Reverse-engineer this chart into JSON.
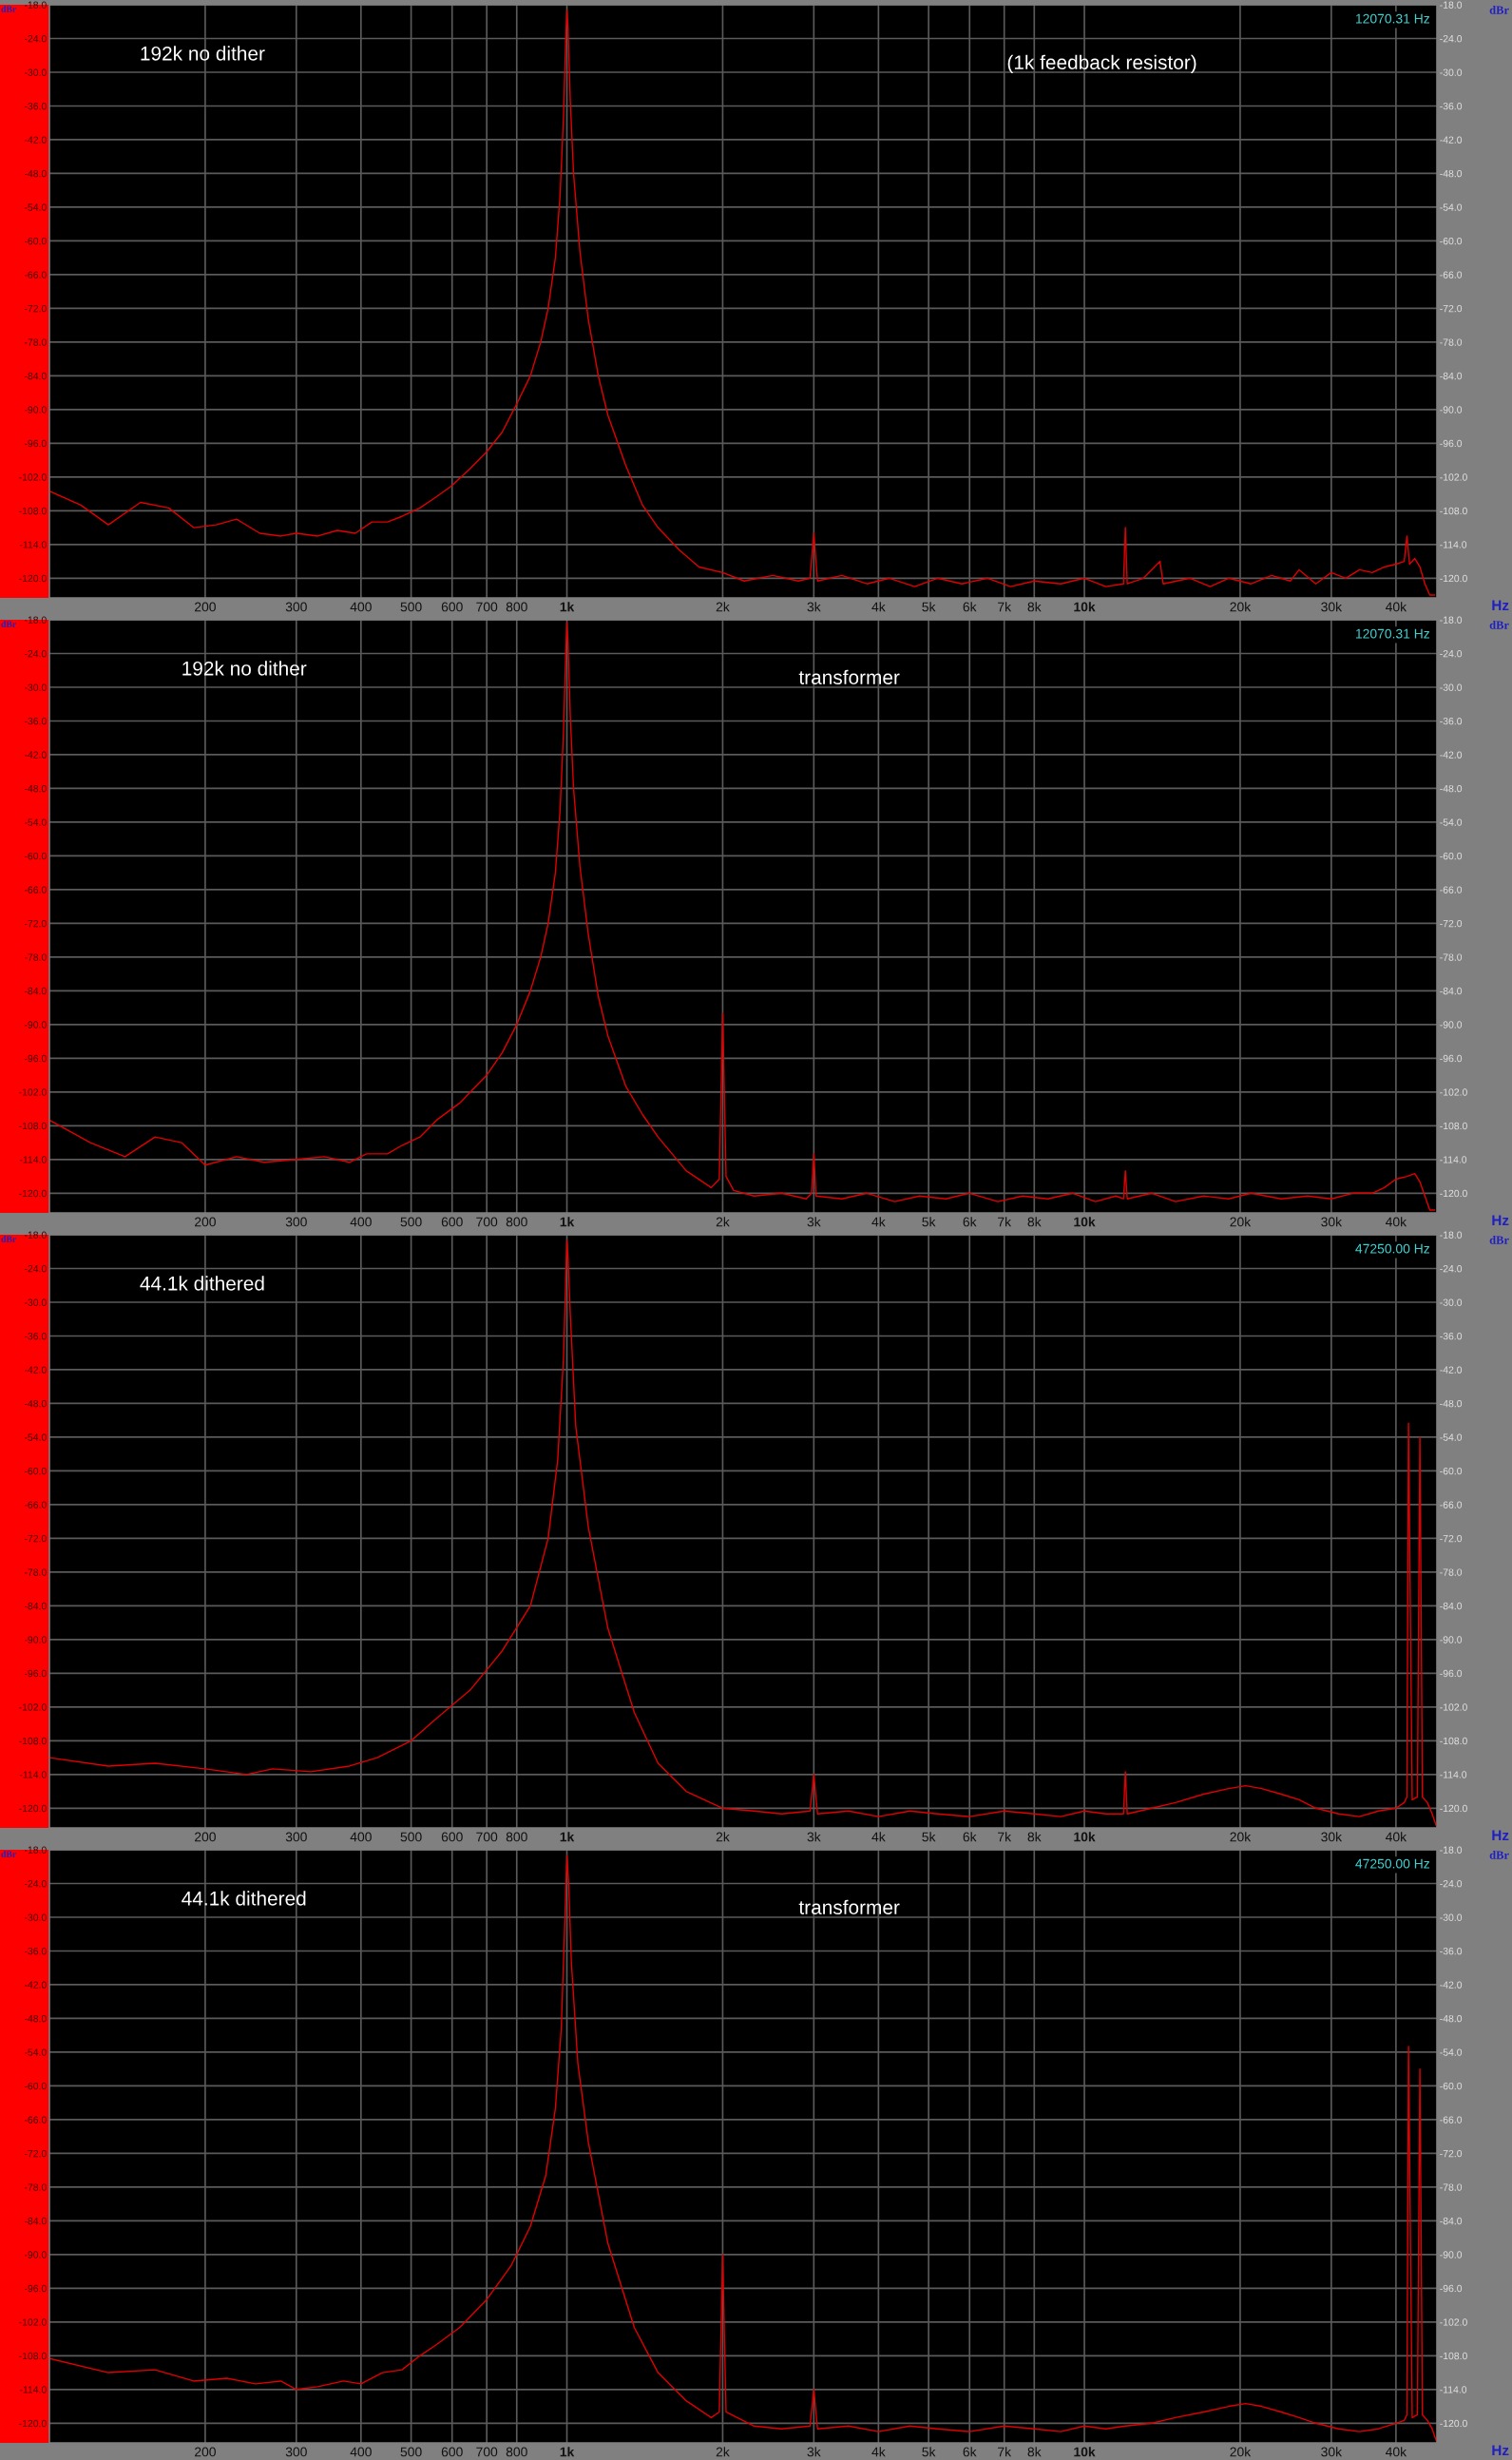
{
  "chart_data": [
    {
      "type": "line",
      "ylabel": "dBr",
      "y2label": "dBr",
      "xlabel": "Hz",
      "log": "x",
      "grid": true,
      "legend": false,
      "marker": "none",
      "line_style": "solid",
      "annotations": [
        "192k no dither",
        "(1k feedback resistor)",
        "12070.31 Hz"
      ],
      "xlim": [
        100,
        48000
      ],
      "xticks": [
        {
          "value": 200,
          "label": "200"
        },
        {
          "value": 300,
          "label": "300"
        },
        {
          "value": 400,
          "label": "400"
        },
        {
          "value": 500,
          "label": "500"
        },
        {
          "value": 600,
          "label": "600"
        },
        {
          "value": 700,
          "label": "700"
        },
        {
          "value": 800,
          "label": "800"
        },
        {
          "value": 1000,
          "label": "1k"
        },
        {
          "value": 2000,
          "label": "2k"
        },
        {
          "value": 3000,
          "label": "3k"
        },
        {
          "value": 4000,
          "label": "4k"
        },
        {
          "value": 5000,
          "label": "5k"
        },
        {
          "value": 6000,
          "label": "6k"
        },
        {
          "value": 7000,
          "label": "7k"
        },
        {
          "value": 8000,
          "label": "8k"
        },
        {
          "value": 10000,
          "label": "10k"
        },
        {
          "value": 20000,
          "label": "20k"
        },
        {
          "value": 30000,
          "label": "30k"
        },
        {
          "value": 40000,
          "label": "40k"
        }
      ],
      "ylim": [
        -123.5,
        -18
      ],
      "yticks": [
        {
          "value": -18,
          "label": "-18.0"
        },
        {
          "value": -24,
          "label": "-24.0"
        },
        {
          "value": -30,
          "label": "-30.0"
        },
        {
          "value": -36,
          "label": "-36.0"
        },
        {
          "value": -42,
          "label": "-42.0"
        },
        {
          "value": -48,
          "label": "-48.0"
        },
        {
          "value": -54,
          "label": "-54.0"
        },
        {
          "value": -60,
          "label": "-60.0"
        },
        {
          "value": -66,
          "label": "-66.0"
        },
        {
          "value": -72,
          "label": "-72.0"
        },
        {
          "value": -78,
          "label": "-78.0"
        },
        {
          "value": -84,
          "label": "-84.0"
        },
        {
          "value": -90,
          "label": "-90.0"
        },
        {
          "value": -96,
          "label": "-96.0"
        },
        {
          "value": -102,
          "label": "-102.0"
        },
        {
          "value": -108,
          "label": "-108.0"
        },
        {
          "value": -114,
          "label": "-114.0"
        },
        {
          "value": -120,
          "label": "-120.0"
        }
      ],
      "y2lim": [
        -123.5,
        -18
      ],
      "y2ticks": [
        {
          "value": -18,
          "label": "-18.0"
        },
        {
          "value": -24,
          "label": "-24.0"
        },
        {
          "value": -30,
          "label": "-30.0"
        },
        {
          "value": -36,
          "label": "-36.0"
        },
        {
          "value": -42,
          "label": "-42.0"
        },
        {
          "value": -48,
          "label": "-48.0"
        },
        {
          "value": -54,
          "label": "-54.0"
        },
        {
          "value": -60,
          "label": "-60.0"
        },
        {
          "value": -66,
          "label": "-66.0"
        },
        {
          "value": -72,
          "label": "-72.0"
        },
        {
          "value": -78,
          "label": "-78.0"
        },
        {
          "value": -84,
          "label": "-84.0"
        },
        {
          "value": -90,
          "label": "-90.0"
        },
        {
          "value": -96,
          "label": "-96.0"
        },
        {
          "value": -102,
          "label": "-102.0"
        },
        {
          "value": -108,
          "label": "-108.0"
        },
        {
          "value": -114,
          "label": "-114.0"
        },
        {
          "value": -120,
          "label": "-120.0"
        }
      ],
      "series": [
        {
          "color": "#e00000",
          "x": [
            100,
            115,
            130,
            150,
            170,
            190,
            210,
            230,
            255,
            280,
            300,
            330,
            360,
            390,
            420,
            450,
            480,
            520,
            560,
            600,
            650,
            700,
            750,
            800,
            850,
            890,
            920,
            950,
            970,
            985,
            995,
            1000,
            1005,
            1015,
            1030,
            1060,
            1100,
            1150,
            1200,
            1300,
            1400,
            1500,
            1650,
            1800,
            2000,
            2200,
            2500,
            2800,
            2950,
            3000,
            3050,
            3400,
            3800,
            4200,
            4700,
            5200,
            5800,
            6500,
            7200,
            8000,
            9000,
            10000,
            11000,
            11900,
            12000,
            12100,
            13000,
            14000,
            14200,
            16000,
            17500,
            19000,
            21000,
            23000,
            25000,
            26000,
            28000,
            30000,
            32000,
            34000,
            36000,
            38000,
            40000,
            41500,
            42000,
            42500,
            43500,
            44500,
            45500,
            46500,
            47500
          ],
          "values": [
            -104.5,
            -107,
            -110.5,
            -106.5,
            -107.5,
            -111,
            -110.5,
            -109.5,
            -112,
            -112.5,
            -112,
            -112.5,
            -111.5,
            -112,
            -110,
            -110,
            -109,
            -107.5,
            -105.5,
            -103.5,
            -100.5,
            -97.5,
            -94,
            -89,
            -84,
            -78,
            -72,
            -63,
            -52,
            -38,
            -24,
            -19,
            -22,
            -35,
            -48,
            -62,
            -74,
            -84,
            -91,
            -100,
            -107,
            -111,
            -115,
            -118,
            -119,
            -120.5,
            -119.5,
            -120.5,
            -120,
            -112,
            -120.5,
            -119.5,
            -121,
            -120,
            -121.5,
            -120,
            -121,
            -120,
            -121.5,
            -120.5,
            -121,
            -120,
            -121.5,
            -121,
            -111,
            -121,
            -120,
            -117,
            -121,
            -120,
            -121.5,
            -120,
            -121,
            -119.5,
            -120.5,
            -118.5,
            -121,
            -119,
            -120,
            -118.5,
            -119,
            -118,
            -117.5,
            -117,
            -112.5,
            -117.5,
            -116.5,
            -118,
            -121,
            -123,
            -123
          ]
        }
      ]
    },
    {
      "type": "line",
      "ylabel": "dBr",
      "y2label": "dBr",
      "xlabel": "Hz",
      "log": "x",
      "grid": true,
      "legend": false,
      "marker": "none",
      "line_style": "solid",
      "annotations": [
        "192k no dither",
        "transformer",
        "12070.31 Hz"
      ],
      "xlim": [
        100,
        48000
      ],
      "xticks": [
        {
          "value": 200,
          "label": "200"
        },
        {
          "value": 300,
          "label": "300"
        },
        {
          "value": 400,
          "label": "400"
        },
        {
          "value": 500,
          "label": "500"
        },
        {
          "value": 600,
          "label": "600"
        },
        {
          "value": 700,
          "label": "700"
        },
        {
          "value": 800,
          "label": "800"
        },
        {
          "value": 1000,
          "label": "1k"
        },
        {
          "value": 2000,
          "label": "2k"
        },
        {
          "value": 3000,
          "label": "3k"
        },
        {
          "value": 4000,
          "label": "4k"
        },
        {
          "value": 5000,
          "label": "5k"
        },
        {
          "value": 6000,
          "label": "6k"
        },
        {
          "value": 7000,
          "label": "7k"
        },
        {
          "value": 8000,
          "label": "8k"
        },
        {
          "value": 10000,
          "label": "10k"
        },
        {
          "value": 20000,
          "label": "20k"
        },
        {
          "value": 30000,
          "label": "30k"
        },
        {
          "value": 40000,
          "label": "40k"
        }
      ],
      "ylim": [
        -123.5,
        -18
      ],
      "yticks": [
        {
          "value": -18,
          "label": "-18.0"
        },
        {
          "value": -24,
          "label": "-24.0"
        },
        {
          "value": -30,
          "label": "-30.0"
        },
        {
          "value": -36,
          "label": "-36.0"
        },
        {
          "value": -42,
          "label": "-42.0"
        },
        {
          "value": -48,
          "label": "-48.0"
        },
        {
          "value": -54,
          "label": "-54.0"
        },
        {
          "value": -60,
          "label": "-60.0"
        },
        {
          "value": -66,
          "label": "-66.0"
        },
        {
          "value": -72,
          "label": "-72.0"
        },
        {
          "value": -78,
          "label": "-78.0"
        },
        {
          "value": -84,
          "label": "-84.0"
        },
        {
          "value": -90,
          "label": "-90.0"
        },
        {
          "value": -96,
          "label": "-96.0"
        },
        {
          "value": -102,
          "label": "-102.0"
        },
        {
          "value": -108,
          "label": "-108.0"
        },
        {
          "value": -114,
          "label": "-114.0"
        },
        {
          "value": -120,
          "label": "-120.0"
        }
      ],
      "y2lim": [
        -123.5,
        -18
      ],
      "y2ticks": [
        {
          "value": -18,
          "label": "-18.0"
        },
        {
          "value": -24,
          "label": "-24.0"
        },
        {
          "value": -30,
          "label": "-30.0"
        },
        {
          "value": -36,
          "label": "-36.0"
        },
        {
          "value": -42,
          "label": "-42.0"
        },
        {
          "value": -48,
          "label": "-48.0"
        },
        {
          "value": -54,
          "label": "-54.0"
        },
        {
          "value": -60,
          "label": "-60.0"
        },
        {
          "value": -66,
          "label": "-66.0"
        },
        {
          "value": -72,
          "label": "-72.0"
        },
        {
          "value": -78,
          "label": "-78.0"
        },
        {
          "value": -84,
          "label": "-84.0"
        },
        {
          "value": -90,
          "label": "-90.0"
        },
        {
          "value": -96,
          "label": "-96.0"
        },
        {
          "value": -102,
          "label": "-102.0"
        },
        {
          "value": -108,
          "label": "-108.0"
        },
        {
          "value": -114,
          "label": "-114.0"
        },
        {
          "value": -120,
          "label": "-120.0"
        }
      ],
      "series": [
        {
          "color": "#e00000",
          "x": [
            100,
            120,
            140,
            160,
            180,
            200,
            230,
            260,
            300,
            340,
            380,
            410,
            450,
            480,
            520,
            560,
            620,
            700,
            750,
            800,
            850,
            890,
            920,
            950,
            970,
            985,
            995,
            1000,
            1005,
            1015,
            1030,
            1060,
            1100,
            1150,
            1200,
            1300,
            1400,
            1500,
            1700,
            1900,
            1970,
            2000,
            2030,
            2100,
            2300,
            2600,
            2900,
            2970,
            3000,
            3030,
            3400,
            3800,
            4300,
            4800,
            5400,
            6000,
            6800,
            7600,
            8500,
            9500,
            10500,
            11500,
            11900,
            12000,
            12100,
            13500,
            15000,
            17000,
            19000,
            21000,
            24000,
            27000,
            30000,
            33000,
            36000,
            38000,
            40000,
            42000,
            43500,
            44500,
            45500,
            46500,
            47500
          ],
          "values": [
            -107,
            -111,
            -113.5,
            -110,
            -111,
            -115,
            -113.5,
            -114.5,
            -114,
            -113.5,
            -114.5,
            -113,
            -113,
            -111.5,
            -110,
            -107,
            -104,
            -99,
            -95,
            -90,
            -84,
            -78,
            -72,
            -63,
            -52,
            -38,
            -24,
            -18.5,
            -22,
            -35,
            -48,
            -62,
            -74,
            -85,
            -92,
            -101,
            -106,
            -110,
            -116,
            -119,
            -117.5,
            -88,
            -117,
            -119.5,
            -120.5,
            -120,
            -121,
            -120,
            -113,
            -120.5,
            -121,
            -120,
            -121.5,
            -120.5,
            -121,
            -120,
            -121.5,
            -120.5,
            -121,
            -120,
            -121.5,
            -120.5,
            -121,
            -116,
            -121,
            -120,
            -121.5,
            -120.5,
            -121,
            -120,
            -121,
            -120.5,
            -121,
            -120,
            -120,
            -119,
            -117.5,
            -117,
            -116.5,
            -118,
            -120.5,
            -123,
            -123
          ]
        }
      ]
    },
    {
      "type": "line",
      "ylabel": "dBr",
      "y2label": "dBr",
      "xlabel": "Hz",
      "log": "x",
      "grid": true,
      "legend": false,
      "marker": "none",
      "line_style": "solid",
      "annotations": [
        "44.1k dithered",
        "47250.00 Hz"
      ],
      "xlim": [
        100,
        48000
      ],
      "xticks": [
        {
          "value": 200,
          "label": "200"
        },
        {
          "value": 300,
          "label": "300"
        },
        {
          "value": 400,
          "label": "400"
        },
        {
          "value": 500,
          "label": "500"
        },
        {
          "value": 600,
          "label": "600"
        },
        {
          "value": 700,
          "label": "700"
        },
        {
          "value": 800,
          "label": "800"
        },
        {
          "value": 1000,
          "label": "1k"
        },
        {
          "value": 2000,
          "label": "2k"
        },
        {
          "value": 3000,
          "label": "3k"
        },
        {
          "value": 4000,
          "label": "4k"
        },
        {
          "value": 5000,
          "label": "5k"
        },
        {
          "value": 6000,
          "label": "6k"
        },
        {
          "value": 7000,
          "label": "7k"
        },
        {
          "value": 8000,
          "label": "8k"
        },
        {
          "value": 10000,
          "label": "10k"
        },
        {
          "value": 20000,
          "label": "20k"
        },
        {
          "value": 30000,
          "label": "30k"
        },
        {
          "value": 40000,
          "label": "40k"
        }
      ],
      "ylim": [
        -123.5,
        -18
      ],
      "yticks": [
        {
          "value": -18,
          "label": "-18.0"
        },
        {
          "value": -24,
          "label": "-24.0"
        },
        {
          "value": -30,
          "label": "-30.0"
        },
        {
          "value": -36,
          "label": "-36.0"
        },
        {
          "value": -42,
          "label": "-42.0"
        },
        {
          "value": -48,
          "label": "-48.0"
        },
        {
          "value": -54,
          "label": "-54.0"
        },
        {
          "value": -60,
          "label": "-60.0"
        },
        {
          "value": -66,
          "label": "-66.0"
        },
        {
          "value": -72,
          "label": "-72.0"
        },
        {
          "value": -78,
          "label": "-78.0"
        },
        {
          "value": -84,
          "label": "-84.0"
        },
        {
          "value": -90,
          "label": "-90.0"
        },
        {
          "value": -96,
          "label": "-96.0"
        },
        {
          "value": -102,
          "label": "-102.0"
        },
        {
          "value": -108,
          "label": "-108.0"
        },
        {
          "value": -114,
          "label": "-114.0"
        },
        {
          "value": -120,
          "label": "-120.0"
        }
      ],
      "y2lim": [
        -123.5,
        -18
      ],
      "y2ticks": [
        {
          "value": -18,
          "label": "-18.0"
        },
        {
          "value": -24,
          "label": "-24.0"
        },
        {
          "value": -30,
          "label": "-30.0"
        },
        {
          "value": -36,
          "label": "-36.0"
        },
        {
          "value": -42,
          "label": "-42.0"
        },
        {
          "value": -48,
          "label": "-48.0"
        },
        {
          "value": -54,
          "label": "-54.0"
        },
        {
          "value": -60,
          "label": "-60.0"
        },
        {
          "value": -66,
          "label": "-66.0"
        },
        {
          "value": -72,
          "label": "-72.0"
        },
        {
          "value": -78,
          "label": "-78.0"
        },
        {
          "value": -84,
          "label": "-84.0"
        },
        {
          "value": -90,
          "label": "-90.0"
        },
        {
          "value": -96,
          "label": "-96.0"
        },
        {
          "value": -102,
          "label": "-102.0"
        },
        {
          "value": -108,
          "label": "-108.0"
        },
        {
          "value": -114,
          "label": "-114.0"
        },
        {
          "value": -120,
          "label": "-120.0"
        }
      ],
      "series": [
        {
          "color": "#e00000",
          "x": [
            100,
            130,
            160,
            200,
            240,
            270,
            320,
            380,
            430,
            500,
            560,
            650,
            750,
            850,
            920,
            960,
            985,
            995,
            1000,
            1005,
            1015,
            1040,
            1100,
            1200,
            1350,
            1500,
            1700,
            2000,
            2300,
            2600,
            2950,
            3000,
            3050,
            3500,
            4000,
            4600,
            5200,
            6000,
            7000,
            8000,
            9000,
            10000,
            11000,
            11900,
            12000,
            12100,
            13500,
            15000,
            17000,
            19000,
            20500,
            22000,
            24000,
            26000,
            28000,
            31000,
            34000,
            37000,
            40000,
            41500,
            42000,
            42300,
            43000,
            44000,
            44500,
            45000,
            46000,
            47000,
            47800
          ],
          "values": [
            -111,
            -112.5,
            -112,
            -113,
            -114,
            -113,
            -113.5,
            -112.5,
            -111,
            -108,
            -104,
            -99,
            -92,
            -84,
            -72,
            -58,
            -40,
            -26,
            -19,
            -22,
            -32,
            -52,
            -70,
            -88,
            -103,
            -112,
            -117,
            -120,
            -120.5,
            -121,
            -120.5,
            -114,
            -121,
            -120.5,
            -121.5,
            -120.5,
            -121,
            -121.5,
            -120.5,
            -121,
            -121.5,
            -120.5,
            -121,
            -121,
            -113.5,
            -121,
            -120,
            -119,
            -117.5,
            -116.5,
            -116,
            -116.5,
            -117.5,
            -118.5,
            -120,
            -121,
            -121.5,
            -120.5,
            -120,
            -119,
            -118,
            -51.5,
            -118.5,
            -118,
            -54,
            -118,
            -119,
            -121,
            -123
          ]
        }
      ]
    },
    {
      "type": "line",
      "ylabel": "dBr",
      "y2label": "dBr",
      "xlabel": "Hz",
      "log": "x",
      "grid": true,
      "legend": false,
      "marker": "none",
      "line_style": "solid",
      "annotations": [
        "44.1k dithered",
        "transformer",
        "47250.00 Hz"
      ],
      "xlim": [
        100,
        48000
      ],
      "xticks": [
        {
          "value": 200,
          "label": "200"
        },
        {
          "value": 300,
          "label": "300"
        },
        {
          "value": 400,
          "label": "400"
        },
        {
          "value": 500,
          "label": "500"
        },
        {
          "value": 600,
          "label": "600"
        },
        {
          "value": 700,
          "label": "700"
        },
        {
          "value": 800,
          "label": "800"
        },
        {
          "value": 1000,
          "label": "1k"
        },
        {
          "value": 2000,
          "label": "2k"
        },
        {
          "value": 3000,
          "label": "3k"
        },
        {
          "value": 4000,
          "label": "4k"
        },
        {
          "value": 5000,
          "label": "5k"
        },
        {
          "value": 6000,
          "label": "6k"
        },
        {
          "value": 7000,
          "label": "7k"
        },
        {
          "value": 8000,
          "label": "8k"
        },
        {
          "value": 10000,
          "label": "10k"
        },
        {
          "value": 20000,
          "label": "20k"
        },
        {
          "value": 30000,
          "label": "30k"
        },
        {
          "value": 40000,
          "label": "40k"
        }
      ],
      "ylim": [
        -123.5,
        -18
      ],
      "yticks": [
        {
          "value": -18,
          "label": "-18.0"
        },
        {
          "value": -24,
          "label": "-24.0"
        },
        {
          "value": -30,
          "label": "-30.0"
        },
        {
          "value": -36,
          "label": "-36.0"
        },
        {
          "value": -42,
          "label": "-42.0"
        },
        {
          "value": -48,
          "label": "-48.0"
        },
        {
          "value": -54,
          "label": "-54.0"
        },
        {
          "value": -60,
          "label": "-60.0"
        },
        {
          "value": -66,
          "label": "-66.0"
        },
        {
          "value": -72,
          "label": "-72.0"
        },
        {
          "value": -78,
          "label": "-78.0"
        },
        {
          "value": -84,
          "label": "-84.0"
        },
        {
          "value": -90,
          "label": "-90.0"
        },
        {
          "value": -96,
          "label": "-96.0"
        },
        {
          "value": -102,
          "label": "-102.0"
        },
        {
          "value": -108,
          "label": "-108.0"
        },
        {
          "value": -114,
          "label": "-114.0"
        },
        {
          "value": -120,
          "label": "-120.0"
        }
      ],
      "y2lim": [
        -123.5,
        -18
      ],
      "y2ticks": [
        {
          "value": -18,
          "label": "-18.0"
        },
        {
          "value": -24,
          "label": "-24.0"
        },
        {
          "value": -30,
          "label": "-30.0"
        },
        {
          "value": -36,
          "label": "-36.0"
        },
        {
          "value": -42,
          "label": "-42.0"
        },
        {
          "value": -48,
          "label": "-48.0"
        },
        {
          "value": -54,
          "label": "-54.0"
        },
        {
          "value": -60,
          "label": "-60.0"
        },
        {
          "value": -66,
          "label": "-66.0"
        },
        {
          "value": -72,
          "label": "-72.0"
        },
        {
          "value": -78,
          "label": "-78.0"
        },
        {
          "value": -84,
          "label": "-84.0"
        },
        {
          "value": -90,
          "label": "-90.0"
        },
        {
          "value": -96,
          "label": "-96.0"
        },
        {
          "value": -102,
          "label": "-102.0"
        },
        {
          "value": -108,
          "label": "-108.0"
        },
        {
          "value": -114,
          "label": "-114.0"
        },
        {
          "value": -120,
          "label": "-120.0"
        }
      ],
      "series": [
        {
          "color": "#e00000",
          "x": [
            100,
            130,
            160,
            190,
            220,
            250,
            280,
            300,
            330,
            370,
            400,
            440,
            480,
            520,
            560,
            620,
            700,
            780,
            850,
            910,
            950,
            975,
            990,
            1000,
            1008,
            1020,
            1050,
            1100,
            1200,
            1350,
            1500,
            1700,
            1900,
            1970,
            2000,
            2030,
            2300,
            2600,
            2950,
            3000,
            3050,
            3500,
            4000,
            4600,
            5200,
            6000,
            7000,
            8000,
            9000,
            10000,
            11000,
            12000,
            13500,
            15000,
            17000,
            19000,
            20500,
            22000,
            24000,
            26000,
            28000,
            31000,
            34000,
            37000,
            40000,
            41500,
            42000,
            42300,
            43000,
            44000,
            44500,
            45000,
            46000,
            47000,
            47800
          ],
          "values": [
            -108.5,
            -111,
            -110.5,
            -112.5,
            -112,
            -113,
            -112.5,
            -114,
            -113.5,
            -112.5,
            -113,
            -111,
            -110.5,
            -108,
            -106,
            -103,
            -98,
            -92,
            -85,
            -76,
            -64,
            -50,
            -32,
            -19,
            -24,
            -38,
            -56,
            -70,
            -88,
            -103,
            -111,
            -116,
            -119,
            -118,
            -90,
            -118,
            -120.5,
            -121,
            -120.5,
            -114,
            -121,
            -120.5,
            -121.5,
            -120.5,
            -121,
            -121.5,
            -120.5,
            -121,
            -121.5,
            -120.5,
            -121,
            -120.5,
            -120,
            -119,
            -118,
            -117,
            -116.5,
            -117,
            -118,
            -119,
            -120,
            -121,
            -121.5,
            -121,
            -120,
            -119.5,
            -118.5,
            -53,
            -119,
            -118.5,
            -57,
            -118.5,
            -119.5,
            -121,
            -123
          ]
        }
      ]
    }
  ]
}
